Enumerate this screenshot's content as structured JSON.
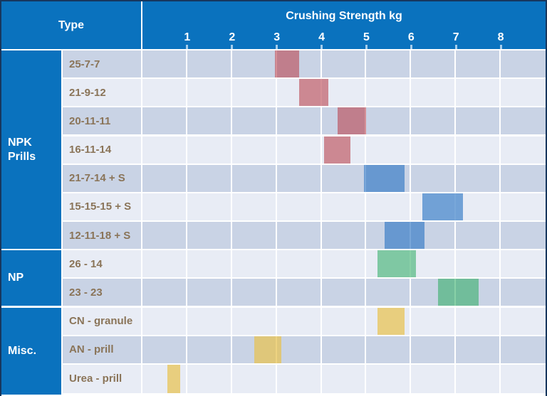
{
  "header": {
    "type_label": "Type",
    "title": "Crushing Strength kg",
    "tick_labels": [
      "1",
      "2",
      "3",
      "4",
      "5",
      "6",
      "7",
      "8"
    ]
  },
  "groups": [
    {
      "label": "NPK Prills",
      "row_span": 7
    },
    {
      "label": "NP",
      "row_span": 2
    },
    {
      "label": "Misc.",
      "row_span": 3
    }
  ],
  "rows": [
    {
      "label": "25-7-7",
      "group": "NPK Prills",
      "family": "red",
      "range": [
        2.95,
        3.5
      ]
    },
    {
      "label": "21-9-12",
      "group": "NPK Prills",
      "family": "red",
      "range": [
        3.5,
        4.15
      ]
    },
    {
      "label": "20-11-11",
      "group": "NPK Prills",
      "family": "red",
      "range": [
        4.35,
        5.0
      ]
    },
    {
      "label": "16-11-14",
      "group": "NPK Prills",
      "family": "red",
      "range": [
        4.05,
        4.65
      ]
    },
    {
      "label": "21-7-14 + S",
      "group": "NPK Prills",
      "family": "blue",
      "range": [
        4.95,
        5.85
      ]
    },
    {
      "label": "15-15-15 + S",
      "group": "NPK Prills",
      "family": "blue",
      "range": [
        6.25,
        7.15
      ]
    },
    {
      "label": "12-11-18 + S",
      "group": "NPK Prills",
      "family": "blue",
      "range": [
        5.4,
        6.3
      ]
    },
    {
      "label": "26 - 14",
      "group": "NP",
      "family": "green",
      "range": [
        5.25,
        6.1
      ]
    },
    {
      "label": "23 - 23",
      "group": "NP",
      "family": "green",
      "range": [
        6.6,
        7.5
      ]
    },
    {
      "label": "CN - granule",
      "group": "Misc.",
      "family": "yellow",
      "range": [
        5.25,
        5.85
      ]
    },
    {
      "label": "AN - prill",
      "group": "Misc.",
      "family": "yellow",
      "range": [
        2.5,
        3.1
      ]
    },
    {
      "label": "Urea - prill",
      "group": "Misc.",
      "family": "yellow",
      "range": [
        0.55,
        0.85
      ]
    }
  ],
  "axis": {
    "min": 0,
    "max": 9,
    "tick_values": [
      1,
      2,
      3,
      4,
      5,
      6,
      7,
      8
    ]
  },
  "colors": {
    "header_blue": "#0a72be",
    "frame_border": "#17375e",
    "row_dark": "#c9d3e5",
    "row_light": "#e8ecf5",
    "grid_line": "#ffffff",
    "tick_mark": "rgba(215,235,250,0.75)",
    "row_label_text": "#8a7458",
    "bar_red": "rgba(188,75,86,0.62)",
    "bar_blue": "rgba(52,122,198,0.66)",
    "bar_green": "rgba(40,172,95,0.55)",
    "bar_yellow": "rgba(232,194,80,0.72)"
  },
  "chart_data": {
    "type": "bar",
    "subtype": "horizontal-floating-range",
    "title": "Crushing Strength kg",
    "xlabel": "Crushing Strength kg",
    "ylabel": "Type",
    "xlim": [
      0,
      9
    ],
    "x_ticks": [
      1,
      2,
      3,
      4,
      5,
      6,
      7,
      8
    ],
    "grid": true,
    "legend": false,
    "categories": [
      "25-7-7",
      "21-9-12",
      "20-11-11",
      "16-11-14",
      "21-7-14 + S",
      "15-15-15 + S",
      "12-11-18 + S",
      "26 - 14",
      "23 - 23",
      "CN - granule",
      "AN - prill",
      "Urea - prill"
    ],
    "category_groups": [
      {
        "label": "NPK Prills",
        "categories": [
          "25-7-7",
          "21-9-12",
          "20-11-11",
          "16-11-14",
          "21-7-14 + S",
          "15-15-15 + S",
          "12-11-18 + S"
        ]
      },
      {
        "label": "NP",
        "categories": [
          "26 - 14",
          "23 - 23"
        ]
      },
      {
        "label": "Misc.",
        "categories": [
          "CN - granule",
          "AN - prill",
          "Urea - prill"
        ]
      }
    ],
    "series": [
      {
        "name": "Crushing strength range (kg)",
        "ranges": [
          [
            2.95,
            3.5
          ],
          [
            3.5,
            4.15
          ],
          [
            4.35,
            5.0
          ],
          [
            4.05,
            4.65
          ],
          [
            4.95,
            5.85
          ],
          [
            6.25,
            7.15
          ],
          [
            5.4,
            6.3
          ],
          [
            5.25,
            6.1
          ],
          [
            6.6,
            7.5
          ],
          [
            5.25,
            5.85
          ],
          [
            2.5,
            3.1
          ],
          [
            0.55,
            0.85
          ]
        ]
      }
    ]
  }
}
